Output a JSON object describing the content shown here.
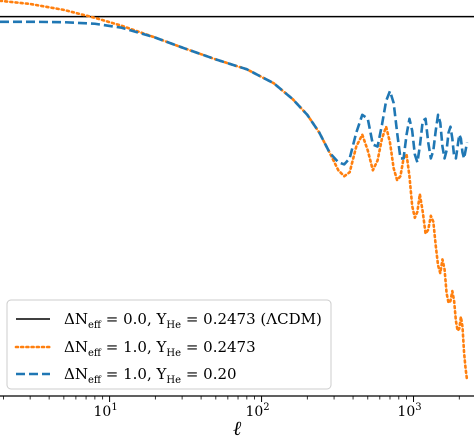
{
  "chart_data": {
    "type": "line",
    "xscale": "log",
    "xlim": [
      1.9,
      2500
    ],
    "ylim": [
      0.0,
      1.0
    ],
    "xlabel": "ℓ",
    "ylabel": "",
    "x_ticks": [
      {
        "value": 10,
        "label": "10",
        "sup": "1"
      },
      {
        "value": 100,
        "label": "10",
        "sup": "2"
      },
      {
        "value": 1000,
        "label": "10",
        "sup": "3"
      }
    ],
    "grid": false,
    "legend_position": "lower-left",
    "series": [
      {
        "name": "ΔN_eff = 0.0, Y_He = 0.2473 (ΛCDM)",
        "legend": {
          "main": "ΔN",
          "sub1": "eff",
          "mid": " = 0.0, Y",
          "sub2": "He",
          "tail": " = 0.2473 (ΛCDM)"
        },
        "style": "solid",
        "color": "#000000",
        "x": [
          1.9,
          2500
        ],
        "y": [
          0.958,
          0.958
        ]
      },
      {
        "name": "ΔN_eff = 1.0, Y_He = 0.2473",
        "legend": {
          "main": "ΔN",
          "sub1": "eff",
          "mid": " = 1.0, Y",
          "sub2": "He",
          "tail": " = 0.2473"
        },
        "style": "dotted",
        "color": "#ff7f0e",
        "x": [
          1.9,
          3,
          5,
          8,
          12,
          20,
          30,
          50,
          80,
          120,
          160,
          200,
          240,
          280,
          320,
          350,
          380,
          420,
          460,
          500,
          540,
          580,
          620,
          660,
          700,
          740,
          780,
          820,
          860,
          900,
          940,
          980,
          1020,
          1060,
          1100,
          1150,
          1200,
          1250,
          1300,
          1350,
          1400,
          1450,
          1500,
          1550,
          1600,
          1650,
          1700,
          1750,
          1800,
          1850,
          1900,
          1950,
          2000,
          2050,
          2100,
          2150,
          2200,
          2250
        ],
        "y": [
          0.998,
          0.99,
          0.975,
          0.955,
          0.935,
          0.905,
          0.88,
          0.85,
          0.825,
          0.79,
          0.75,
          0.71,
          0.665,
          0.615,
          0.57,
          0.555,
          0.565,
          0.63,
          0.66,
          0.62,
          0.57,
          0.595,
          0.65,
          0.68,
          0.64,
          0.575,
          0.545,
          0.555,
          0.6,
          0.61,
          0.555,
          0.48,
          0.45,
          0.465,
          0.51,
          0.465,
          0.41,
          0.42,
          0.455,
          0.44,
          0.38,
          0.33,
          0.31,
          0.345,
          0.32,
          0.26,
          0.235,
          0.24,
          0.265,
          0.24,
          0.19,
          0.165,
          0.17,
          0.2,
          0.175,
          0.11,
          0.07,
          0.04
        ]
      },
      {
        "name": "ΔN_eff = 1.0, Y_He = 0.20",
        "legend": {
          "main": "ΔN",
          "sub1": "eff",
          "mid": " = 1.0, Y",
          "sub2": "He",
          "tail": " = 0.20"
        },
        "style": "dashed",
        "color": "#1f77b4",
        "x": [
          1.9,
          3,
          5,
          8,
          12,
          20,
          30,
          50,
          80,
          120,
          160,
          200,
          240,
          280,
          320,
          350,
          380,
          420,
          460,
          500,
          540,
          580,
          620,
          660,
          700,
          740,
          780,
          820,
          860,
          900,
          940,
          980,
          1020,
          1060,
          1100,
          1150,
          1200,
          1250,
          1300,
          1350,
          1400,
          1450,
          1500,
          1550,
          1600,
          1650,
          1700,
          1750,
          1800,
          1850,
          1900,
          1950,
          2000,
          2050,
          2100,
          2150,
          2200,
          2250
        ],
        "y": [
          0.945,
          0.945,
          0.944,
          0.94,
          0.93,
          0.905,
          0.88,
          0.85,
          0.825,
          0.79,
          0.75,
          0.71,
          0.665,
          0.615,
          0.59,
          0.585,
          0.6,
          0.665,
          0.71,
          0.7,
          0.635,
          0.63,
          0.685,
          0.745,
          0.77,
          0.74,
          0.665,
          0.6,
          0.6,
          0.66,
          0.7,
          0.67,
          0.61,
          0.59,
          0.63,
          0.695,
          0.7,
          0.64,
          0.6,
          0.62,
          0.67,
          0.71,
          0.69,
          0.63,
          0.6,
          0.62,
          0.665,
          0.68,
          0.65,
          0.605,
          0.6,
          0.63,
          0.66,
          0.65,
          0.615,
          0.6,
          0.62,
          0.64
        ]
      }
    ]
  }
}
